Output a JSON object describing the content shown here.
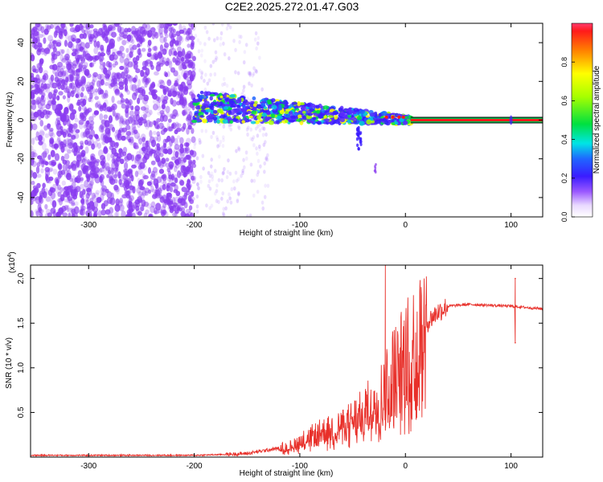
{
  "title": "C2E2.2025.272.01.47.G03",
  "colors": {
    "snr_line": "#e8302a",
    "spec_cloud": "#8a3cf0",
    "ridge_center": "#ff1a1a",
    "ridge_edge": "#00c050"
  },
  "chart_data": [
    {
      "id": "spectrogram",
      "type": "heatmap",
      "xlabel": "Height of straight line (km)",
      "ylabel": "Frequency (Hz)",
      "xlim": [
        -355,
        130
      ],
      "ylim": [
        -50,
        50
      ],
      "xticks": [
        -300,
        -200,
        -100,
        0,
        100
      ],
      "xtick_labels": [
        "-300",
        "-200",
        "-100",
        "0",
        "100"
      ],
      "yticks": [
        -40,
        -20,
        0,
        20,
        40
      ],
      "ytick_labels": [
        "-40",
        "-20",
        "0",
        "20",
        "40"
      ],
      "ridge": {
        "start_km": -200,
        "end_km": 5,
        "freq_start_hz": 7,
        "freq_end_hz": 0,
        "tone_start_km": 5,
        "tone_freq_hz": 0
      },
      "colorbar": {
        "label": "Normalized spectral amplitude",
        "min": 0,
        "max": 1,
        "ticks": [
          0.0,
          0.2,
          0.4,
          0.6,
          0.8
        ],
        "tick_labels": [
          "0.0",
          "0.2",
          "0.4",
          "0.6",
          "0.8"
        ]
      }
    },
    {
      "id": "snr",
      "type": "line",
      "xlabel": "Height of straight line (km)",
      "ylabel": "SNR (10 * v/v)",
      "scale_label": "(x10",
      "scale_exp": "4",
      "scale_close": ")",
      "xlim": [
        -355,
        130
      ],
      "ylim": [
        0,
        2.15
      ],
      "xticks": [
        -300,
        -200,
        -100,
        0,
        100
      ],
      "xtick_labels": [
        "-300",
        "-200",
        "-100",
        "0",
        "100"
      ],
      "yticks": [
        0.5,
        1.0,
        1.5,
        2.0
      ],
      "ytick_labels": [
        "0.5",
        "1.0",
        "1.5",
        "2.0"
      ],
      "series": [
        {
          "name": "SNR",
          "x": [
            -355,
            -300,
            -250,
            -200,
            -170,
            -150,
            -130,
            -110,
            -100,
            -80,
            -60,
            -40,
            -20,
            -10,
            0,
            10,
            20,
            30,
            40,
            60,
            80,
            100,
            110,
            130
          ],
          "y": [
            0.02,
            0.02,
            0.02,
            0.02,
            0.03,
            0.04,
            0.08,
            0.12,
            0.18,
            0.28,
            0.35,
            0.5,
            0.75,
            1.0,
            1.12,
            1.3,
            1.5,
            1.62,
            1.69,
            1.71,
            1.7,
            1.69,
            1.68,
            1.66
          ]
        }
      ],
      "spikes": [
        {
          "x": -19,
          "y": 2.15
        },
        {
          "x": 104,
          "y": 2.0
        },
        {
          "x": 104,
          "y": 1.28
        }
      ]
    }
  ]
}
